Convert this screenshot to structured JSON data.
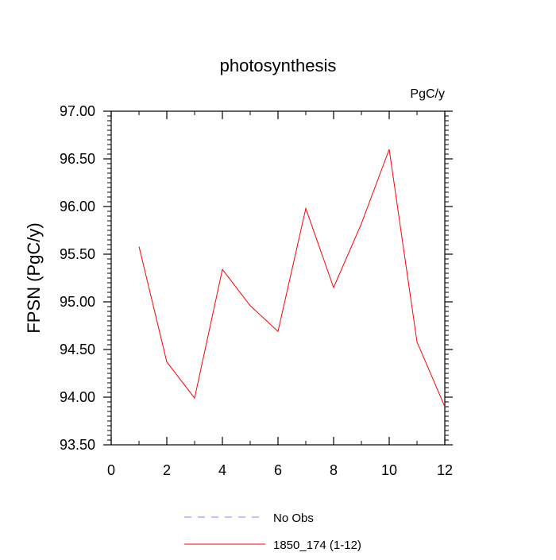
{
  "chart_data": {
    "type": "line",
    "title": "photosynthesis",
    "units_label": "PgC/y",
    "xlabel": "",
    "ylabel": "FPSN  (PgC/y)",
    "xlim": [
      0,
      12
    ],
    "ylim": [
      93.5,
      97.0
    ],
    "x_ticks": [
      0,
      2,
      4,
      6,
      8,
      10,
      12
    ],
    "y_ticks": [
      93.5,
      94.0,
      94.5,
      95.0,
      95.5,
      96.0,
      96.5,
      97.0
    ],
    "y_tick_labels": [
      "93.50",
      "94.00",
      "94.50",
      "95.00",
      "95.50",
      "96.00",
      "96.50",
      "97.00"
    ],
    "grid": false,
    "legend_placement": "bottom",
    "legend": [
      {
        "name": "No Obs",
        "style": "dashed",
        "color": "#8080ff"
      },
      {
        "name": "1850_174 (1-12)",
        "style": "solid",
        "color": "#ff0000"
      }
    ],
    "series": [
      {
        "name": "1850_174 (1-12)",
        "color": "#ff0000",
        "x": [
          1,
          2,
          3,
          4,
          5,
          6,
          7,
          8,
          9,
          10,
          11,
          12
        ],
        "values": [
          95.58,
          94.37,
          93.99,
          95.34,
          94.96,
          94.69,
          95.98,
          95.15,
          95.82,
          96.6,
          94.58,
          93.9
        ]
      }
    ]
  }
}
